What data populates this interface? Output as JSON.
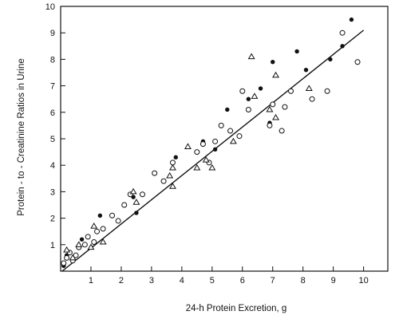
{
  "chart_data": {
    "type": "scatter",
    "title": "",
    "xlabel": "24-h Protein Excretion, g",
    "ylabel": "Protein - to - Creatinine Ratios in Urine",
    "xlim": [
      0,
      10.8
    ],
    "ylim": [
      0,
      10
    ],
    "x_ticks": [
      "1",
      "2",
      "3",
      "4",
      "5",
      "6",
      "7",
      "8",
      "9",
      "10"
    ],
    "y_ticks": [
      "1",
      "2",
      "3",
      "4",
      "5",
      "6",
      "7",
      "8",
      "9",
      "10"
    ],
    "grid": false,
    "legend": "none",
    "marker_color": "#111111",
    "regression_line": {
      "x": [
        0.05,
        10.0
      ],
      "y": [
        0.0,
        9.1
      ]
    },
    "series": [
      {
        "marker": "filled-circle",
        "points": [
          [
            0.1,
            0.2
          ],
          [
            0.2,
            0.6
          ],
          [
            0.7,
            1.2
          ],
          [
            1.3,
            2.1
          ],
          [
            2.4,
            2.8
          ],
          [
            2.5,
            2.2
          ],
          [
            3.8,
            4.3
          ],
          [
            4.7,
            4.9
          ],
          [
            5.1,
            4.6
          ],
          [
            5.5,
            6.1
          ],
          [
            6.2,
            6.5
          ],
          [
            6.6,
            6.9
          ],
          [
            6.9,
            5.6
          ],
          [
            7.0,
            7.9
          ],
          [
            7.8,
            8.3
          ],
          [
            8.1,
            7.6
          ],
          [
            8.9,
            8.0
          ],
          [
            9.3,
            8.5
          ],
          [
            9.6,
            9.5
          ]
        ]
      },
      {
        "marker": "open-circle",
        "points": [
          [
            0.1,
            0.3
          ],
          [
            0.2,
            0.5
          ],
          [
            0.3,
            0.7
          ],
          [
            0.4,
            0.4
          ],
          [
            0.5,
            0.6
          ],
          [
            0.6,
            0.9
          ],
          [
            0.8,
            1.0
          ],
          [
            0.9,
            1.3
          ],
          [
            1.1,
            1.1
          ],
          [
            1.2,
            1.5
          ],
          [
            1.4,
            1.6
          ],
          [
            1.7,
            2.1
          ],
          [
            1.9,
            1.9
          ],
          [
            2.1,
            2.5
          ],
          [
            2.3,
            2.9
          ],
          [
            2.7,
            2.9
          ],
          [
            3.1,
            3.7
          ],
          [
            3.4,
            3.4
          ],
          [
            3.7,
            4.1
          ],
          [
            4.5,
            4.5
          ],
          [
            4.7,
            4.8
          ],
          [
            4.9,
            4.1
          ],
          [
            5.1,
            4.9
          ],
          [
            5.3,
            5.5
          ],
          [
            5.6,
            5.3
          ],
          [
            5.9,
            5.1
          ],
          [
            6.0,
            6.8
          ],
          [
            6.2,
            6.1
          ],
          [
            6.9,
            5.5
          ],
          [
            7.0,
            6.3
          ],
          [
            7.3,
            5.3
          ],
          [
            7.4,
            6.2
          ],
          [
            7.6,
            6.8
          ],
          [
            8.3,
            6.5
          ],
          [
            8.8,
            6.8
          ],
          [
            9.3,
            9.0
          ],
          [
            9.8,
            7.9
          ]
        ]
      },
      {
        "marker": "open-triangle",
        "points": [
          [
            0.2,
            0.8
          ],
          [
            0.4,
            0.5
          ],
          [
            0.6,
            1.0
          ],
          [
            1.0,
            0.9
          ],
          [
            1.1,
            1.7
          ],
          [
            1.4,
            1.1
          ],
          [
            2.4,
            3.0
          ],
          [
            2.5,
            2.6
          ],
          [
            3.6,
            3.6
          ],
          [
            3.7,
            3.9
          ],
          [
            3.7,
            3.2
          ],
          [
            4.2,
            4.7
          ],
          [
            4.5,
            3.9
          ],
          [
            4.8,
            4.2
          ],
          [
            5.0,
            3.9
          ],
          [
            5.7,
            4.9
          ],
          [
            6.3,
            8.1
          ],
          [
            6.4,
            6.6
          ],
          [
            6.9,
            6.1
          ],
          [
            7.1,
            7.4
          ],
          [
            7.1,
            5.8
          ],
          [
            8.2,
            6.9
          ]
        ]
      }
    ]
  }
}
